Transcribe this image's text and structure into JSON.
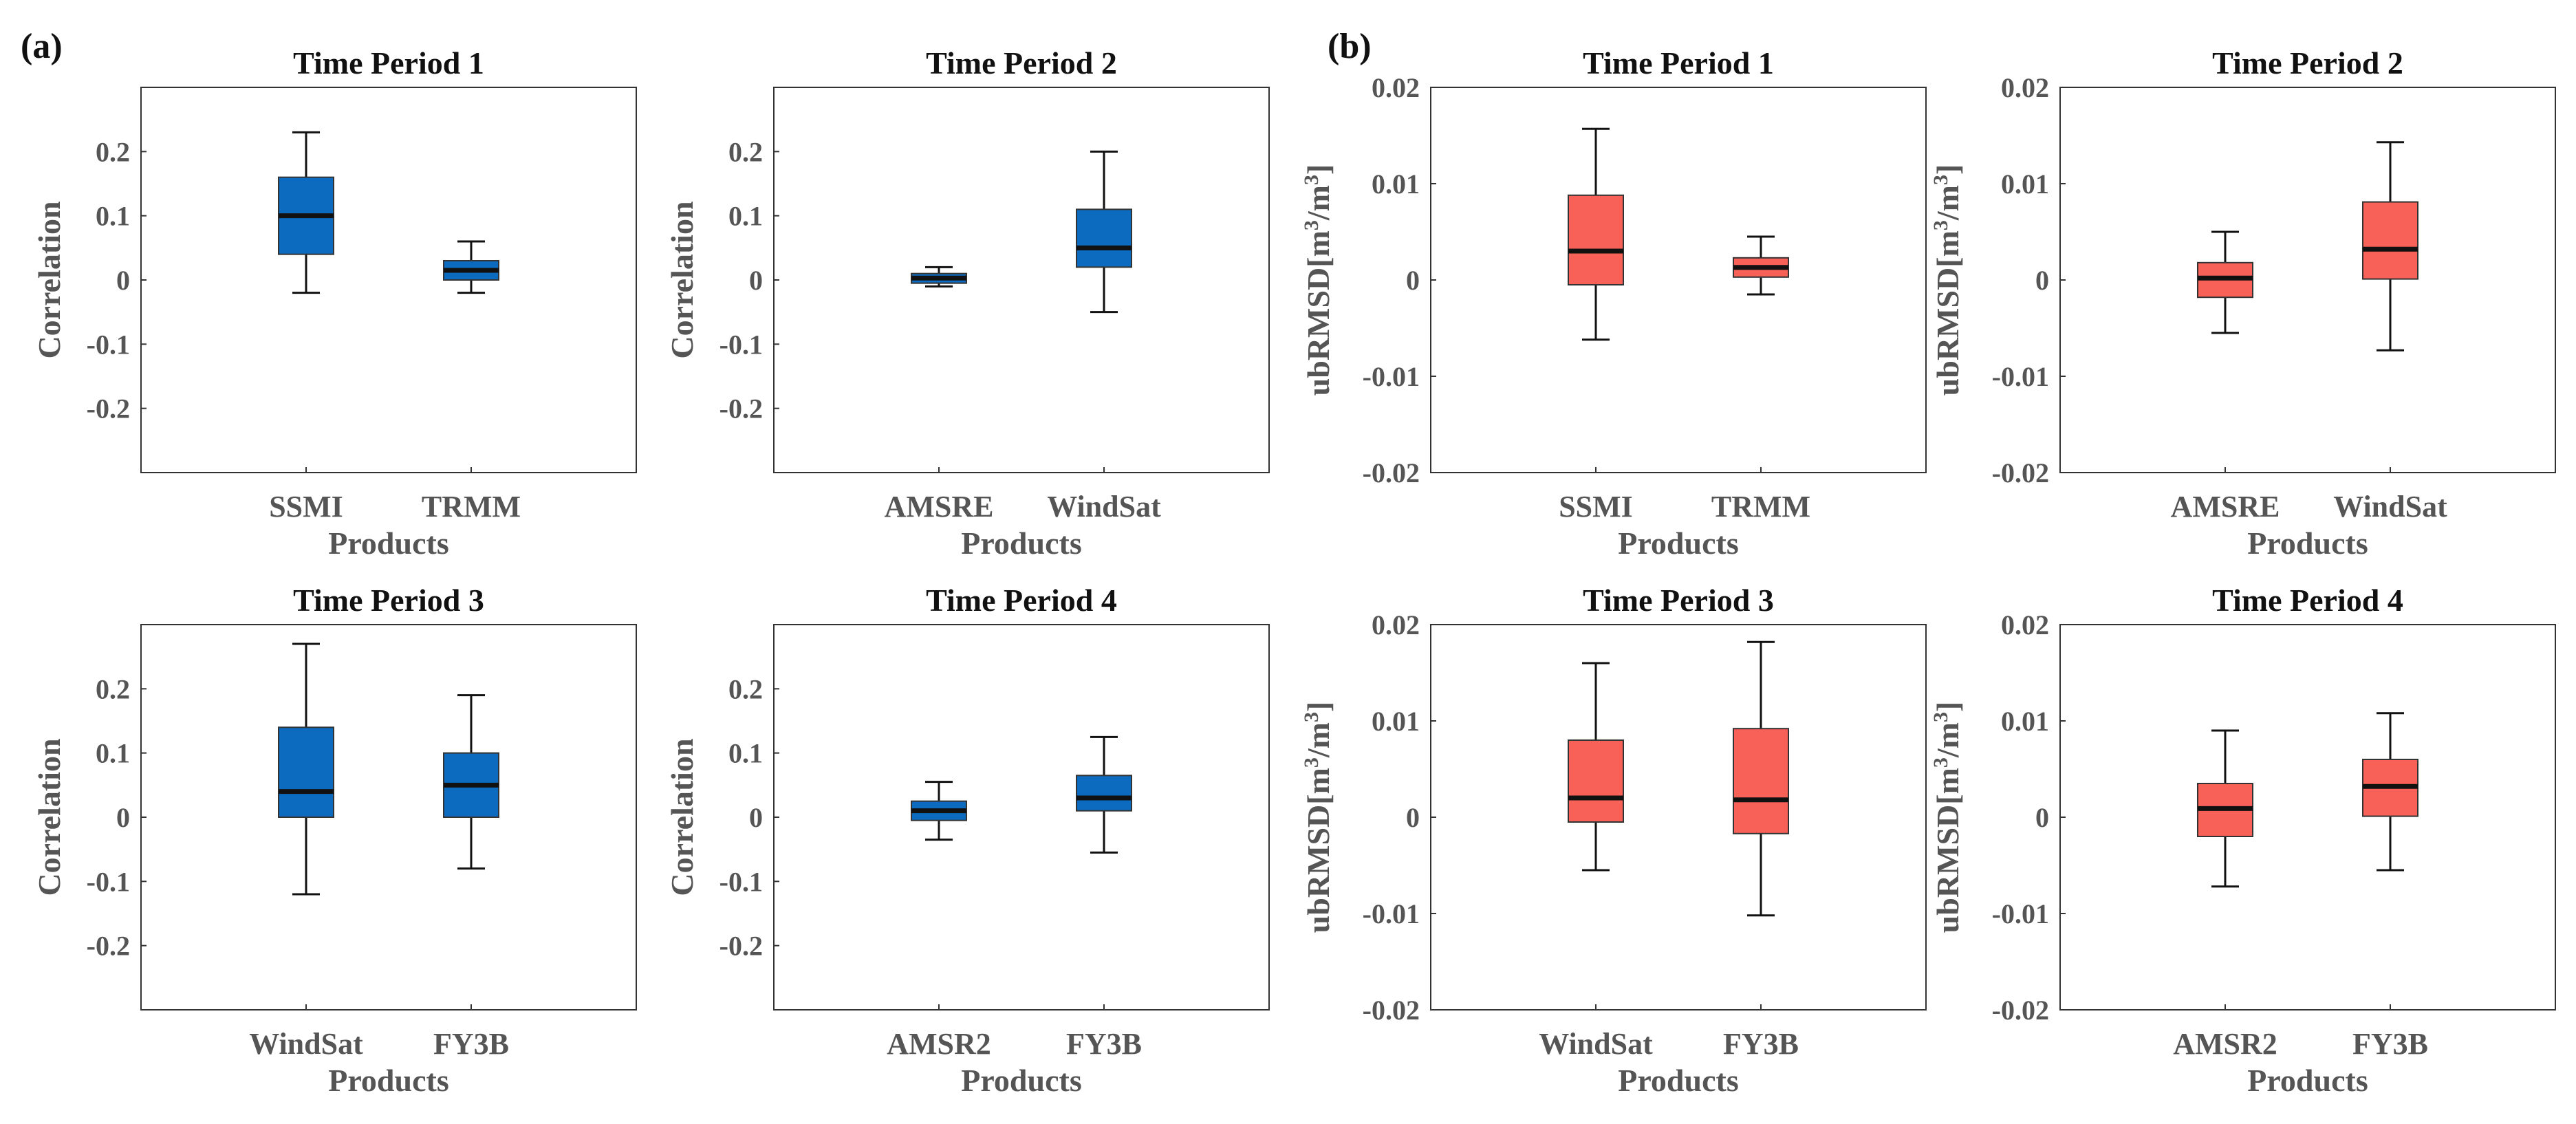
{
  "colors": {
    "correlation_box": "#0d6bbf",
    "ubrmsd_box": "#f76158",
    "median": "#111111",
    "whisker": "#111111"
  },
  "panel_labels": [
    "(a)",
    "(b)"
  ],
  "chart_data": [
    {
      "type": "box",
      "title": "Time Period 1",
      "xlabel": "Products",
      "ylabel": "Correlation",
      "ylim": [
        -0.3,
        0.3
      ],
      "yticks": [
        0.2,
        0.1,
        0,
        -0.1,
        -0.2
      ],
      "ytick_labels": [
        "0.2",
        "0.1",
        "0",
        "-0.1",
        "-0.2"
      ],
      "categories": [
        "SSMI",
        "TRMM"
      ],
      "boxes": [
        {
          "whislo": -0.02,
          "q1": 0.04,
          "med": 0.1,
          "q3": 0.16,
          "whishi": 0.23
        },
        {
          "whislo": -0.02,
          "q1": 0.0,
          "med": 0.015,
          "q3": 0.03,
          "whishi": 0.06
        }
      ]
    },
    {
      "type": "box",
      "title": "Time Period 2",
      "xlabel": "Products",
      "ylabel": "Correlation",
      "ylim": [
        -0.3,
        0.3
      ],
      "yticks": [
        0.2,
        0.1,
        0,
        -0.1,
        -0.2
      ],
      "ytick_labels": [
        "0.2",
        "0.1",
        "0",
        "-0.1",
        "-0.2"
      ],
      "categories": [
        "AMSRE",
        "WindSat"
      ],
      "boxes": [
        {
          "whislo": -0.01,
          "q1": -0.005,
          "med": 0.003,
          "q3": 0.01,
          "whishi": 0.02
        },
        {
          "whislo": -0.05,
          "q1": 0.02,
          "med": 0.05,
          "q3": 0.11,
          "whishi": 0.2
        }
      ]
    },
    {
      "type": "box",
      "title": "Time Period 1",
      "xlabel": "Products",
      "ylabel": "ubRMSD[m3/m3]",
      "ylim": [
        -0.02,
        0.02
      ],
      "yticks": [
        0.02,
        0.01,
        0,
        -0.01,
        -0.02
      ],
      "ytick_labels": [
        "0.02",
        "0.01",
        "0",
        "-0.01",
        "-0.02"
      ],
      "categories": [
        "SSMI",
        "TRMM"
      ],
      "boxes": [
        {
          "whislo": -0.0062,
          "q1": -0.0005,
          "med": 0.003,
          "q3": 0.0088,
          "whishi": 0.0157
        },
        {
          "whislo": -0.0015,
          "q1": 0.0003,
          "med": 0.0013,
          "q3": 0.0023,
          "whishi": 0.0045
        }
      ]
    },
    {
      "type": "box",
      "title": "Time Period 2",
      "xlabel": "Products",
      "ylabel": "ubRMSD[m3/m3]",
      "ylim": [
        -0.02,
        0.02
      ],
      "yticks": [
        0.02,
        0.01,
        0,
        -0.01,
        -0.02
      ],
      "ytick_labels": [
        "0.02",
        "0.01",
        "0",
        "-0.01",
        "-0.02"
      ],
      "categories": [
        "AMSRE",
        "WindSat"
      ],
      "boxes": [
        {
          "whislo": -0.0055,
          "q1": -0.0018,
          "med": 0.0002,
          "q3": 0.0018,
          "whishi": 0.005
        },
        {
          "whislo": -0.0073,
          "q1": 0.0001,
          "med": 0.0032,
          "q3": 0.0081,
          "whishi": 0.0143
        }
      ]
    },
    {
      "type": "box",
      "title": "Time Period 3",
      "xlabel": "Products",
      "ylabel": "Correlation",
      "ylim": [
        -0.3,
        0.3
      ],
      "yticks": [
        0.2,
        0.1,
        0,
        -0.1,
        -0.2
      ],
      "ytick_labels": [
        "0.2",
        "0.1",
        "0",
        "-0.1",
        "-0.2"
      ],
      "categories": [
        "WindSat",
        "FY3B"
      ],
      "boxes": [
        {
          "whislo": -0.12,
          "q1": 0.0,
          "med": 0.04,
          "q3": 0.14,
          "whishi": 0.27
        },
        {
          "whislo": -0.08,
          "q1": 0.0,
          "med": 0.05,
          "q3": 0.1,
          "whishi": 0.19
        }
      ]
    },
    {
      "type": "box",
      "title": "Time Period 4",
      "xlabel": "Products",
      "ylabel": "Correlation",
      "ylim": [
        -0.3,
        0.3
      ],
      "yticks": [
        0.2,
        0.1,
        0,
        -0.1,
        -0.2
      ],
      "ytick_labels": [
        "0.2",
        "0.1",
        "0",
        "-0.1",
        "-0.2"
      ],
      "categories": [
        "AMSR2",
        "FY3B"
      ],
      "boxes": [
        {
          "whislo": -0.035,
          "q1": -0.005,
          "med": 0.01,
          "q3": 0.025,
          "whishi": 0.055
        },
        {
          "whislo": -0.055,
          "q1": 0.01,
          "med": 0.03,
          "q3": 0.065,
          "whishi": 0.125
        }
      ]
    },
    {
      "type": "box",
      "title": "Time Period 3",
      "xlabel": "Products",
      "ylabel": "ubRMSD[m3/m3]",
      "ylim": [
        -0.02,
        0.02
      ],
      "yticks": [
        0.02,
        0.01,
        0,
        -0.01,
        -0.02
      ],
      "ytick_labels": [
        "0.02",
        "0.01",
        "0",
        "-0.01",
        "-0.02"
      ],
      "categories": [
        "WindSat",
        "FY3B"
      ],
      "boxes": [
        {
          "whislo": -0.0055,
          "q1": -0.0005,
          "med": 0.002,
          "q3": 0.008,
          "whishi": 0.016
        },
        {
          "whislo": -0.0102,
          "q1": -0.0017,
          "med": 0.0018,
          "q3": 0.0092,
          "whishi": 0.0182
        }
      ]
    },
    {
      "type": "box",
      "title": "Time Period 4",
      "xlabel": "Products",
      "ylabel": "ubRMSD[m3/m3]",
      "ylim": [
        -0.02,
        0.02
      ],
      "yticks": [
        0.02,
        0.01,
        0,
        -0.01,
        -0.02
      ],
      "ytick_labels": [
        "0.02",
        "0.01",
        "0",
        "-0.01",
        "-0.02"
      ],
      "categories": [
        "AMSR2",
        "FY3B"
      ],
      "boxes": [
        {
          "whislo": -0.0072,
          "q1": -0.002,
          "med": 0.0009,
          "q3": 0.0035,
          "whishi": 0.009
        },
        {
          "whislo": -0.0055,
          "q1": 0.0001,
          "med": 0.0032,
          "q3": 0.006,
          "whishi": 0.0108
        }
      ]
    }
  ]
}
